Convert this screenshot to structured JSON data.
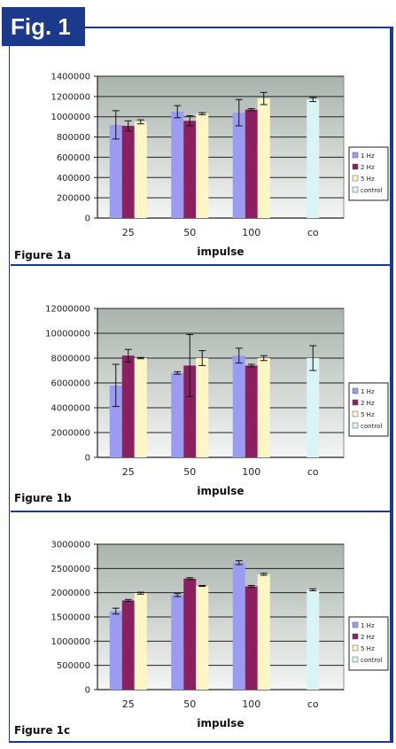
{
  "fig_label": "Fig. 1",
  "colors": {
    "frame": "#1b3a8c",
    "plot_bg_top": "#a9b3ad",
    "plot_bg_bottom": "#f4f5f4"
  },
  "chart_data": [
    {
      "type": "bar",
      "panel_label": "Figure 1a",
      "xlabel": "impulse",
      "categories": [
        "25",
        "50",
        "100",
        "co"
      ],
      "ylim": [
        0,
        1400000
      ],
      "yticks": [
        "0",
        "200000",
        "400000",
        "600000",
        "800000",
        "1000000",
        "1200000",
        "1400000"
      ],
      "series": [
        {
          "name": "1 Hz",
          "color": "#9a9cf2",
          "values": [
            920000,
            1050000,
            1040000,
            null
          ],
          "errors": [
            140000,
            60000,
            130000,
            null
          ]
        },
        {
          "name": "2 Hz",
          "color": "#8b2060",
          "values": [
            910000,
            960000,
            1070000,
            null
          ],
          "errors": [
            50000,
            50000,
            10000,
            null
          ]
        },
        {
          "name": "5 Hz",
          "color": "#fbf6c4",
          "values": [
            950000,
            1030000,
            1180000,
            null
          ],
          "errors": [
            20000,
            10000,
            60000,
            null
          ]
        },
        {
          "name": "control",
          "color": "#d9f4f4",
          "values": [
            null,
            null,
            null,
            1170000
          ],
          "errors": [
            null,
            null,
            null,
            20000
          ]
        }
      ]
    },
    {
      "type": "bar",
      "panel_label": "Figure 1b",
      "xlabel": "impulse",
      "categories": [
        "25",
        "50",
        "100",
        "co"
      ],
      "ylim": [
        0,
        12000000
      ],
      "yticks": [
        "0",
        "2000000",
        "4000000",
        "6000000",
        "8000000",
        "10000000",
        "12000000"
      ],
      "series": [
        {
          "name": "1 Hz",
          "color": "#9a9cf2",
          "values": [
            5800000,
            6800000,
            8200000,
            null
          ],
          "errors": [
            1700000,
            100000,
            600000,
            null
          ]
        },
        {
          "name": "2 Hz",
          "color": "#8b2060",
          "values": [
            8200000,
            7400000,
            7400000,
            null
          ],
          "errors": [
            500000,
            2500000,
            100000,
            null
          ]
        },
        {
          "name": "5 Hz",
          "color": "#fbf6c4",
          "values": [
            8000000,
            8000000,
            8000000,
            null
          ],
          "errors": [
            50000,
            600000,
            200000,
            null
          ]
        },
        {
          "name": "control",
          "color": "#d9f4f4",
          "values": [
            null,
            null,
            null,
            8000000
          ],
          "errors": [
            null,
            null,
            null,
            1000000
          ]
        }
      ]
    },
    {
      "type": "bar",
      "panel_label": "Figure 1c",
      "xlabel": "impulse",
      "categories": [
        "25",
        "50",
        "100",
        "co"
      ],
      "ylim": [
        0,
        3000000
      ],
      "yticks": [
        "0",
        "500000",
        "1000000",
        "1500000",
        "2000000",
        "2500000",
        "3000000"
      ],
      "series": [
        {
          "name": "1 Hz",
          "color": "#9a9cf2",
          "values": [
            1620000,
            1950000,
            2620000,
            null
          ],
          "errors": [
            60000,
            30000,
            40000,
            null
          ]
        },
        {
          "name": "2 Hz",
          "color": "#8b2060",
          "values": [
            1840000,
            2290000,
            2130000,
            null
          ],
          "errors": [
            20000,
            20000,
            20000,
            null
          ]
        },
        {
          "name": "5 Hz",
          "color": "#fbf6c4",
          "values": [
            1990000,
            2140000,
            2380000,
            null
          ],
          "errors": [
            20000,
            10000,
            20000,
            null
          ]
        },
        {
          "name": "control",
          "color": "#d9f4f4",
          "values": [
            null,
            null,
            null,
            2060000
          ],
          "errors": [
            null,
            null,
            null,
            20000
          ]
        }
      ]
    }
  ]
}
